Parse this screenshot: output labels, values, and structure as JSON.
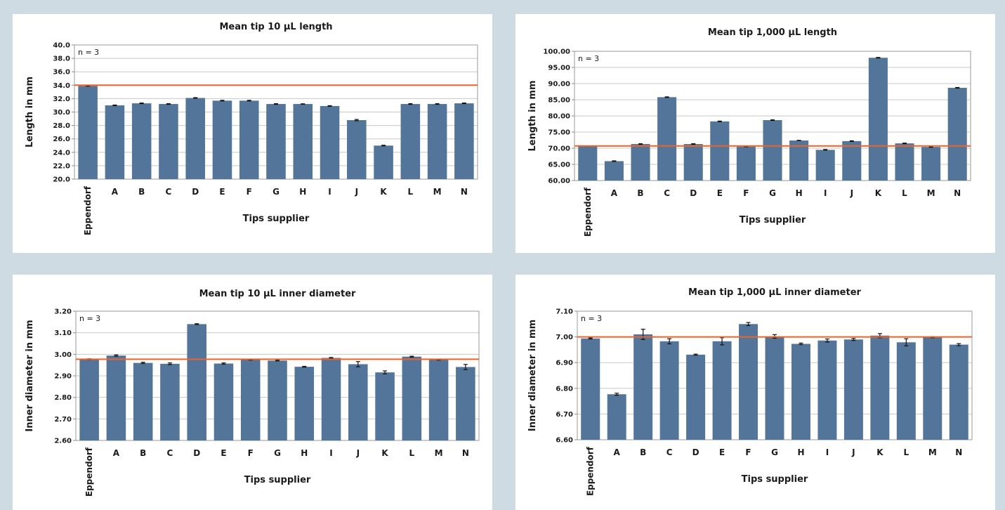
{
  "chart_data": [
    {
      "type": "bar",
      "title": "Mean tip 10 µL length",
      "xlabel": "Tips supplier",
      "ylabel": "Length in mm",
      "annotation": "n = 3",
      "categories": [
        "Eppendorf",
        "A",
        "B",
        "C",
        "D",
        "E",
        "F",
        "G",
        "H",
        "I",
        "J",
        "K",
        "L",
        "M",
        "N"
      ],
      "values": [
        33.9,
        31.0,
        31.3,
        31.2,
        32.1,
        31.7,
        31.7,
        31.2,
        31.2,
        30.9,
        28.8,
        25.0,
        31.2,
        31.2,
        31.3
      ],
      "errors": [
        0.05,
        0.05,
        0.05,
        0.05,
        0.05,
        0.05,
        0.05,
        0.05,
        0.03,
        0.05,
        0.1,
        0.05,
        0.05,
        0.05,
        0.05
      ],
      "reference_line": 34.0,
      "ylim": [
        20.0,
        40.0
      ],
      "yticks": [
        "20.0",
        "22.0",
        "24.0",
        "26.0",
        "28.0",
        "30.0",
        "32.0",
        "34.0",
        "36.0",
        "38.0",
        "40.0"
      ],
      "grid": true,
      "colors": {
        "bar": "#54759a",
        "reference": "#e8652e",
        "grid": "#c8c8c8"
      }
    },
    {
      "type": "bar",
      "title": "Mean tip 1,000 µL length",
      "xlabel": "Tips supplier",
      "ylabel": "Length in mm",
      "annotation": "n = 3",
      "categories": [
        "Eppendorf",
        "A",
        "B",
        "C",
        "D",
        "E",
        "F",
        "G",
        "H",
        "I",
        "J",
        "K",
        "L",
        "M",
        "N"
      ],
      "values": [
        70.7,
        66.0,
        71.3,
        85.8,
        71.3,
        78.3,
        70.5,
        78.7,
        72.4,
        69.5,
        72.2,
        98.0,
        71.5,
        70.4,
        88.7
      ],
      "errors": [
        0.05,
        0.1,
        0.1,
        0.1,
        0.1,
        0.1,
        0.05,
        0.1,
        0.05,
        0.1,
        0.1,
        0.1,
        0.1,
        0.1,
        0.1
      ],
      "reference_line": 70.7,
      "ylim": [
        60.0,
        100.0
      ],
      "yticks": [
        "60.00",
        "65.00",
        "70.00",
        "75.00",
        "80.00",
        "85.00",
        "90.00",
        "95.00",
        "100.00"
      ],
      "grid": true,
      "colors": {
        "bar": "#54759a",
        "reference": "#e8652e",
        "grid": "#c8c8c8"
      }
    },
    {
      "type": "bar",
      "title": "Mean tip 10 µL inner diameter",
      "xlabel": "Tips supplier",
      "ylabel": "Inner diameter in mm",
      "annotation": "n = 3",
      "categories": [
        "Eppendorf",
        "A",
        "B",
        "C",
        "D",
        "E",
        "F",
        "G",
        "H",
        "I",
        "J",
        "K",
        "L",
        "M",
        "N"
      ],
      "values": [
        2.977,
        2.994,
        2.96,
        2.956,
        3.14,
        2.957,
        2.975,
        2.971,
        2.942,
        2.983,
        2.954,
        2.916,
        2.989,
        2.975,
        2.941
      ],
      "errors": [
        0.002,
        0.003,
        0.003,
        0.004,
        0.002,
        0.003,
        0.002,
        0.002,
        0.002,
        0.002,
        0.012,
        0.007,
        0.002,
        0.002,
        0.012
      ],
      "reference_line": 2.977,
      "ylim": [
        2.6,
        3.2
      ],
      "yticks": [
        "2.60",
        "2.70",
        "2.80",
        "2.90",
        "3.00",
        "3.10",
        "3.20"
      ],
      "grid": true,
      "colors": {
        "bar": "#54759a",
        "reference": "#e8652e",
        "grid": "#c8c8c8"
      }
    },
    {
      "type": "bar",
      "title": "Mean tip 1,000 µL inner diameter",
      "xlabel": "Tips supplier",
      "ylabel": "Inner diameter in mm",
      "annotation": "n = 3",
      "categories": [
        "Eppendorf",
        "A",
        "B",
        "C",
        "D",
        "E",
        "F",
        "G",
        "H",
        "I",
        "J",
        "K",
        "L",
        "M",
        "N"
      ],
      "values": [
        6.994,
        6.777,
        7.01,
        6.983,
        6.931,
        6.983,
        7.05,
        7.002,
        6.973,
        6.986,
        6.99,
        7.005,
        6.979,
        6.999,
        6.97
      ],
      "errors": [
        0.002,
        0.004,
        0.02,
        0.01,
        0.002,
        0.014,
        0.006,
        0.007,
        0.003,
        0.006,
        0.004,
        0.008,
        0.014,
        0.002,
        0.004
      ],
      "reference_line": 7.0,
      "ylim": [
        6.6,
        7.1
      ],
      "yticks": [
        "6.60",
        "6.70",
        "6.80",
        "6.90",
        "7.00",
        "7.10"
      ],
      "grid": true,
      "colors": {
        "bar": "#54759a",
        "reference": "#e8652e",
        "grid": "#c8c8c8"
      }
    }
  ]
}
